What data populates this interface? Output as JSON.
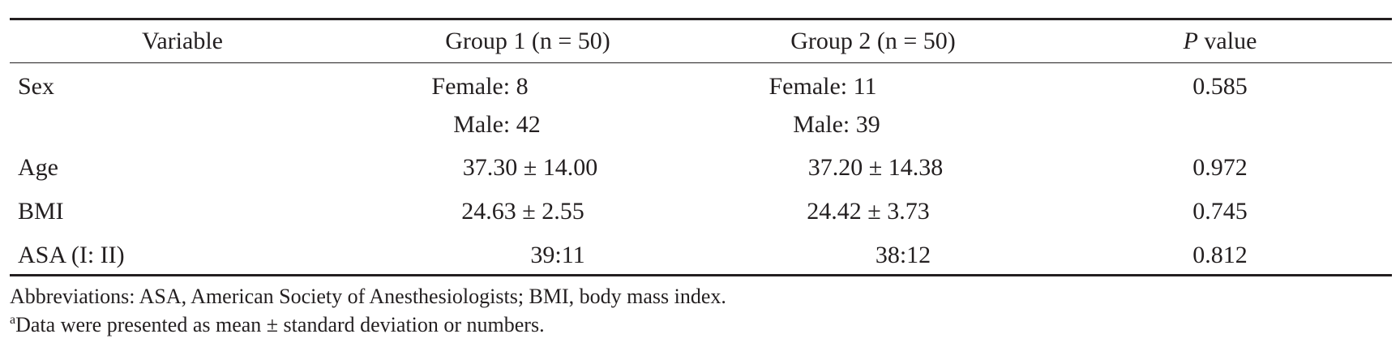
{
  "table": {
    "headers": {
      "variable": "Variable",
      "group1": "Group 1 (n = 50)",
      "group2": "Group 2 (n = 50)",
      "p_symbol": "P",
      "p_rest": " value"
    },
    "rows": [
      {
        "variable": "Sex",
        "group1_line1": "Female: 8",
        "group1_line2": "Male: 42",
        "group2_line1": "Female: 11",
        "group2_line2": "Male: 39",
        "p": "0.585"
      },
      {
        "variable": "Age",
        "group1": "37.30 ± 14.00",
        "group2": "37.20 ± 14.38",
        "p": "0.972"
      },
      {
        "variable": "BMI",
        "group1": "24.63 ± 2.55",
        "group2": "24.42 ± 3.73",
        "p": "0.745"
      },
      {
        "variable": "ASA (I: II)",
        "group1": "39:11",
        "group2": "38:12",
        "p": "0.812"
      }
    ]
  },
  "footnotes": {
    "abbreviations": "Abbreviations: ASA, American Society of Anesthesiologists; BMI, body mass index.",
    "marker": "a",
    "data_note": "Data were presented as mean ± standard deviation or numbers."
  }
}
